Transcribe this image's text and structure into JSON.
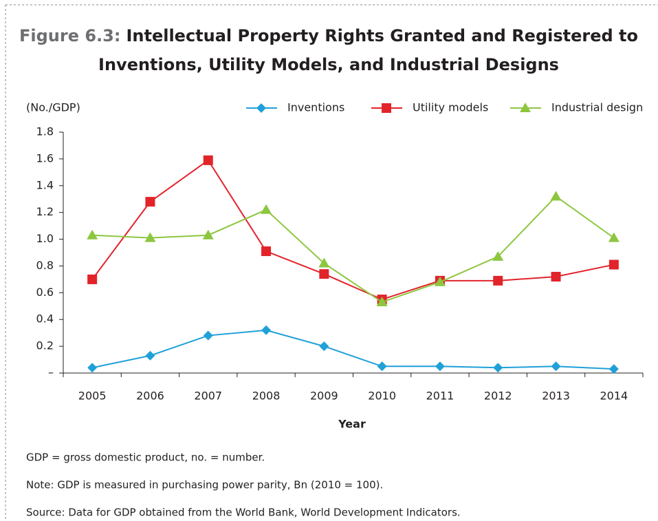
{
  "chart_data": {
    "type": "line",
    "figure_number": "Figure 6.3:",
    "title": [
      "Intellectual Property Rights Granted and Registered to",
      "Inventions, Utility Models, and Industrial Designs"
    ],
    "y_label": "(No./GDP)",
    "x_label": "Year",
    "categories": [
      "2005",
      "2006",
      "2007",
      "2008",
      "2009",
      "2010",
      "2011",
      "2012",
      "2013",
      "2014"
    ],
    "series": [
      {
        "name": "Inventions",
        "color": "#1fa0d8",
        "marker": "diamond",
        "values": [
          0.04,
          0.13,
          0.28,
          0.32,
          0.2,
          0.05,
          0.05,
          0.04,
          0.05,
          0.03
        ]
      },
      {
        "name": "Utility models",
        "color": "#e2232a",
        "marker": "square",
        "values": [
          0.7,
          1.28,
          1.59,
          0.91,
          0.74,
          0.55,
          0.69,
          0.69,
          0.72,
          0.81
        ]
      },
      {
        "name": "Industrial design",
        "color": "#8dc63f",
        "marker": "triangle",
        "values": [
          1.03,
          1.01,
          1.03,
          1.22,
          0.82,
          0.53,
          0.68,
          0.87,
          1.32,
          1.01
        ]
      }
    ],
    "ylim": [
      0,
      1.8
    ],
    "yticks": [
      {
        "value": 0,
        "label": "–"
      },
      0.2,
      0.4,
      0.6,
      0.8,
      {
        "value": 1,
        "label": "1.0"
      },
      1.2,
      1.4,
      1.6,
      1.8
    ],
    "grid": false,
    "legend": "top",
    "notes": [
      "GDP = gross domestic product, no. = number.",
      "Note: GDP is measured in purchasing power parity, Bn (2010 = 100).",
      "Source: Data for GDP obtained from the World Bank, World Development Indicators."
    ]
  }
}
